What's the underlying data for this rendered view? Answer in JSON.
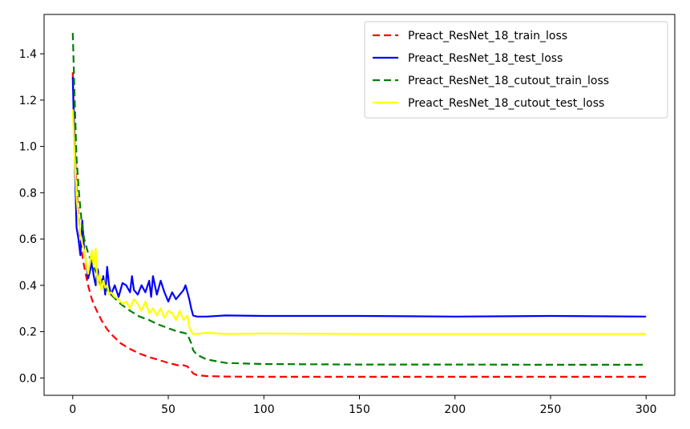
{
  "chart_data": {
    "type": "line",
    "title": "",
    "xlabel": "",
    "ylabel": "",
    "xlim": [
      -15,
      315
    ],
    "ylim": [
      -0.075,
      1.57
    ],
    "xticks": [
      0,
      50,
      100,
      150,
      200,
      250,
      300
    ],
    "xtick_labels": [
      "0",
      "50",
      "100",
      "150",
      "200",
      "250",
      "300"
    ],
    "yticks": [
      0.0,
      0.2,
      0.4,
      0.6,
      0.8,
      1.0,
      1.2,
      1.4
    ],
    "ytick_labels": [
      "0.0",
      "0.2",
      "0.4",
      "0.6",
      "0.8",
      "1.0",
      "1.2",
      "1.4"
    ],
    "grid": false,
    "legend_position": "top-right",
    "series": [
      {
        "name": "Preact_ResNet_18_train_loss",
        "color": "#ff0000",
        "dashed": true,
        "x": [
          0,
          1,
          2,
          3,
          4,
          5,
          6,
          8,
          10,
          12,
          15,
          18,
          20,
          25,
          30,
          35,
          40,
          45,
          50,
          55,
          58,
          60,
          61,
          62,
          63,
          65,
          70,
          80,
          100,
          150,
          200,
          250,
          300
        ],
        "y": [
          1.32,
          1.0,
          0.82,
          0.7,
          0.6,
          0.53,
          0.48,
          0.4,
          0.34,
          0.3,
          0.25,
          0.21,
          0.19,
          0.15,
          0.125,
          0.105,
          0.09,
          0.078,
          0.065,
          0.055,
          0.055,
          0.05,
          0.04,
          0.03,
          0.02,
          0.012,
          0.008,
          0.006,
          0.005,
          0.005,
          0.005,
          0.005,
          0.005
        ]
      },
      {
        "name": "Preact_ResNet_18_test_loss",
        "color": "#0000ff",
        "dashed": false,
        "x": [
          0,
          1,
          2,
          3,
          4,
          5,
          6,
          7,
          8,
          9,
          10,
          11,
          12,
          13,
          14,
          15,
          16,
          17,
          18,
          19,
          20,
          22,
          24,
          26,
          28,
          30,
          31,
          32,
          34,
          36,
          38,
          40,
          41,
          42,
          44,
          46,
          48,
          50,
          52,
          54,
          56,
          58,
          59,
          60,
          61,
          62,
          63,
          65,
          70,
          80,
          100,
          150,
          200,
          250,
          300
        ],
        "y": [
          1.3,
          0.95,
          0.65,
          0.6,
          0.53,
          0.68,
          0.55,
          0.5,
          0.43,
          0.46,
          0.5,
          0.44,
          0.4,
          0.47,
          0.42,
          0.39,
          0.44,
          0.36,
          0.48,
          0.4,
          0.36,
          0.4,
          0.35,
          0.41,
          0.4,
          0.37,
          0.44,
          0.38,
          0.36,
          0.4,
          0.37,
          0.42,
          0.35,
          0.44,
          0.36,
          0.42,
          0.37,
          0.33,
          0.37,
          0.34,
          0.36,
          0.38,
          0.4,
          0.37,
          0.34,
          0.3,
          0.27,
          0.265,
          0.265,
          0.27,
          0.268,
          0.268,
          0.265,
          0.268,
          0.265
        ]
      },
      {
        "name": "Preact_ResNet_18_cutout_train_loss",
        "color": "#008000",
        "dashed": true,
        "x": [
          0,
          1,
          2,
          3,
          4,
          5,
          6,
          8,
          10,
          12,
          15,
          18,
          20,
          25,
          30,
          35,
          40,
          45,
          50,
          55,
          58,
          60,
          61,
          62,
          63,
          65,
          70,
          80,
          100,
          150,
          200,
          250,
          300
        ],
        "y": [
          1.49,
          1.2,
          0.95,
          0.83,
          0.73,
          0.65,
          0.6,
          0.54,
          0.5,
          0.46,
          0.42,
          0.38,
          0.36,
          0.32,
          0.29,
          0.265,
          0.25,
          0.23,
          0.215,
          0.2,
          0.195,
          0.19,
          0.17,
          0.15,
          0.12,
          0.1,
          0.08,
          0.065,
          0.06,
          0.058,
          0.058,
          0.057,
          0.057
        ]
      },
      {
        "name": "Preact_ResNet_18_cutout_test_loss",
        "color": "#ffff00",
        "dashed": false,
        "x": [
          0,
          1,
          2,
          3,
          4,
          5,
          6,
          7,
          8,
          9,
          10,
          11,
          12,
          13,
          14,
          15,
          16,
          17,
          18,
          19,
          20,
          22,
          24,
          26,
          28,
          30,
          32,
          34,
          36,
          38,
          40,
          42,
          44,
          46,
          48,
          50,
          52,
          54,
          56,
          58,
          60,
          61,
          62,
          63,
          65,
          70,
          80,
          100,
          150,
          200,
          250,
          300
        ],
        "y": [
          1.16,
          0.95,
          0.78,
          0.68,
          0.62,
          0.58,
          0.55,
          0.5,
          0.45,
          0.5,
          0.55,
          0.48,
          0.56,
          0.4,
          0.45,
          0.38,
          0.42,
          0.39,
          0.4,
          0.36,
          0.37,
          0.35,
          0.34,
          0.32,
          0.33,
          0.3,
          0.34,
          0.32,
          0.29,
          0.33,
          0.28,
          0.3,
          0.27,
          0.3,
          0.26,
          0.29,
          0.28,
          0.25,
          0.29,
          0.25,
          0.27,
          0.22,
          0.2,
          0.19,
          0.19,
          0.195,
          0.19,
          0.192,
          0.19,
          0.19,
          0.19,
          0.19
        ]
      }
    ]
  }
}
